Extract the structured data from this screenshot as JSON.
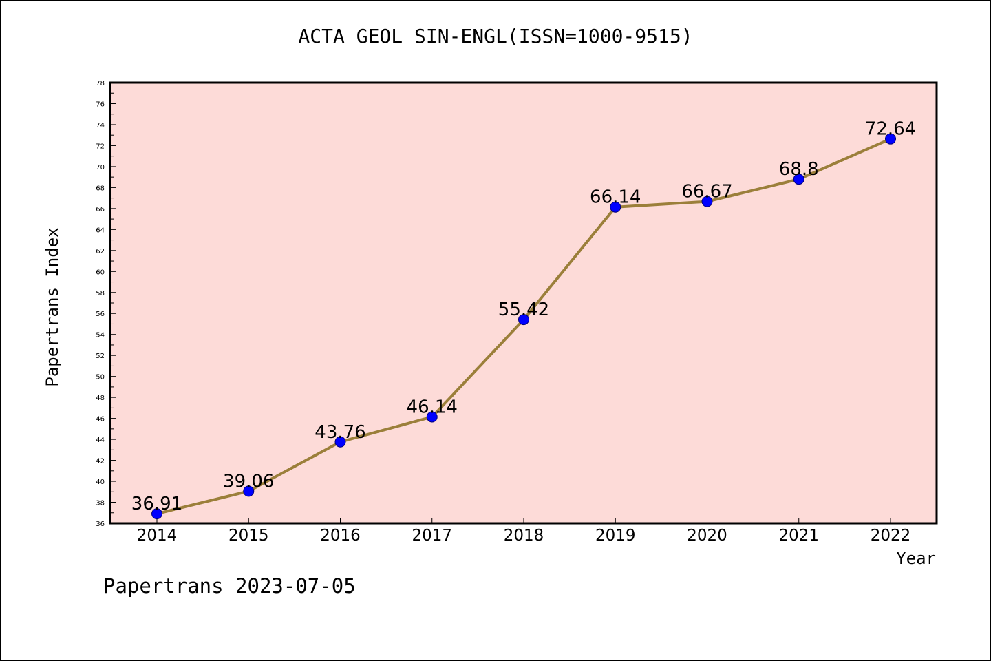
{
  "chart_data": {
    "type": "line",
    "title": "ACTA GEOL SIN-ENGL(ISSN=1000-9515)",
    "xlabel": "Year",
    "ylabel": "Papertrans Index",
    "categories": [
      "2014",
      "2015",
      "2016",
      "2017",
      "2018",
      "2019",
      "2020",
      "2021",
      "2022"
    ],
    "series": [
      {
        "values": [
          36.91,
          39.06,
          43.76,
          46.14,
          55.42,
          66.14,
          66.67,
          68.8,
          72.64
        ],
        "data_labels": [
          "36.91",
          "39.06",
          "43.76",
          "46.14",
          "55.42",
          "66.14",
          "66.67",
          "68.8",
          "72.64"
        ]
      }
    ],
    "ylim": [
      36,
      78
    ],
    "yticks": [
      "36",
      "38",
      "40",
      "42",
      "44",
      "46",
      "48",
      "50",
      "52",
      "54",
      "56",
      "58",
      "60",
      "62",
      "64",
      "66",
      "68",
      "70",
      "72",
      "74",
      "76",
      "78"
    ],
    "grid": false,
    "legend": "none",
    "colors": {
      "plot_background": "#fddbd8",
      "line": "#9b7f3a",
      "marker": "#0000ff",
      "axis": "#000000"
    }
  },
  "footer": "Papertrans 2023-07-05"
}
